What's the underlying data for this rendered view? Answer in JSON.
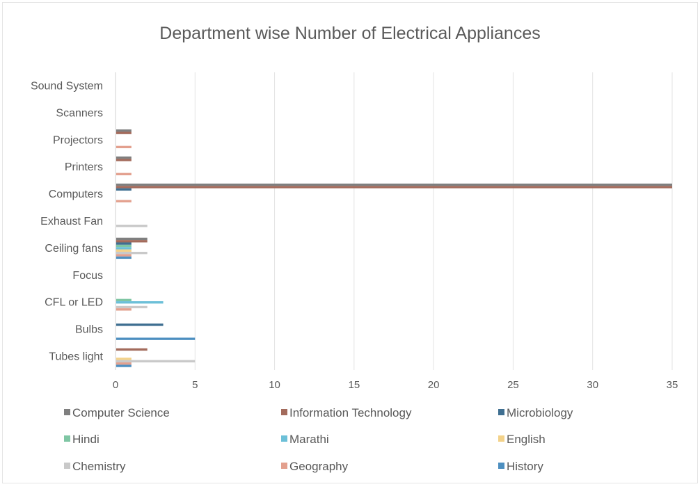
{
  "chart_data": {
    "type": "bar",
    "orientation": "horizontal",
    "title": "Department wise Number of Electrical Appliances",
    "xlabel": "",
    "ylabel": "",
    "xlim": [
      0,
      35
    ],
    "xticks": [
      0,
      5,
      10,
      15,
      20,
      25,
      30,
      35
    ],
    "grid": true,
    "legend_position": "bottom",
    "categories": [
      "Tubes light",
      "Bulbs",
      "CFL or LED",
      "Focus",
      "Ceiling fans",
      "Exhaust Fan",
      "Computers",
      "Printers",
      "Projectors",
      "Scanners",
      "Sound System"
    ],
    "series": [
      {
        "name": "Computer Science",
        "color": "#7f7f7f",
        "values": [
          0,
          0,
          0,
          0,
          2,
          0,
          35,
          1,
          1,
          0,
          0
        ]
      },
      {
        "name": "Information Technology",
        "color": "#a36b5c",
        "values": [
          2,
          0,
          0,
          0,
          2,
          0,
          35,
          1,
          1,
          0,
          0
        ]
      },
      {
        "name": "Microbiology",
        "color": "#3f6f91",
        "values": [
          0,
          3,
          0,
          0,
          1,
          0,
          1,
          0,
          0,
          0,
          0
        ]
      },
      {
        "name": "Hindi",
        "color": "#7fc6a4",
        "values": [
          0,
          0,
          1,
          0,
          1,
          0,
          0,
          0,
          0,
          0,
          0
        ]
      },
      {
        "name": "Marathi",
        "color": "#6cc0d8",
        "values": [
          0,
          0,
          3,
          0,
          1,
          0,
          0,
          0,
          0,
          0,
          0
        ]
      },
      {
        "name": "English",
        "color": "#f3d28a",
        "values": [
          1,
          0,
          0,
          0,
          1,
          0,
          0,
          0,
          0,
          0,
          0
        ]
      },
      {
        "name": "Chemistry",
        "color": "#c9c9c9",
        "values": [
          5,
          0,
          2,
          0,
          2,
          2,
          0,
          0,
          0,
          0,
          0
        ]
      },
      {
        "name": "Geography",
        "color": "#e3a08e",
        "values": [
          1,
          0,
          1,
          0,
          1,
          0,
          1,
          1,
          1,
          0,
          0
        ]
      },
      {
        "name": "History",
        "color": "#4d8fc0",
        "values": [
          1,
          5,
          0,
          0,
          1,
          0,
          0,
          0,
          0,
          0,
          0
        ]
      }
    ]
  }
}
